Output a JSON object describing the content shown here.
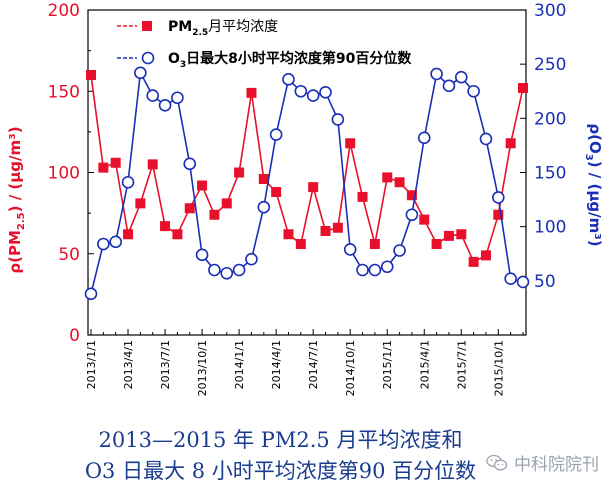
{
  "chart_data": {
    "type": "line",
    "x": [
      "2013/1/1",
      "2013/2/1",
      "2013/3/1",
      "2013/4/1",
      "2013/5/1",
      "2013/6/1",
      "2013/7/1",
      "2013/8/1",
      "2013/9/1",
      "2013/10/1",
      "2013/11/1",
      "2013/12/1",
      "2014/1/1",
      "2014/2/1",
      "2014/3/1",
      "2014/4/1",
      "2014/5/1",
      "2014/6/1",
      "2014/7/1",
      "2014/8/1",
      "2014/9/1",
      "2014/10/1",
      "2014/11/1",
      "2014/12/1",
      "2015/1/1",
      "2015/2/1",
      "2015/3/1",
      "2015/4/1",
      "2015/5/1",
      "2015/6/1",
      "2015/7/1",
      "2015/8/1",
      "2015/9/1",
      "2015/10/1",
      "2015/11/1",
      "2015/12/1"
    ],
    "x_tick_labels": [
      "2013/1/1",
      "2013/4/1",
      "2013/7/1",
      "2013/10/1",
      "2014/1/1",
      "2014/4/1",
      "2014/7/1",
      "2014/10/1",
      "2015/1/1",
      "2015/4/1",
      "2015/7/1",
      "2015/10/1"
    ],
    "ylabel_left": "ρ(PM2.5) / (μg/m3)",
    "ylabel_right": "ρ(O3) / (μg/m3)",
    "ylim_left": [
      0,
      200
    ],
    "yticks_left": [
      "0",
      "50",
      "100",
      "150",
      "200"
    ],
    "ylim_right": [
      0,
      300
    ],
    "yticks_right": [
      "50",
      "100",
      "150",
      "200",
      "250",
      "300"
    ],
    "legend_position": "top",
    "series": [
      {
        "name": "PM2.5月平均浓度",
        "axis": "left",
        "color": "#e8102a",
        "marker": "square-filled",
        "values": [
          160,
          103,
          106,
          62,
          81,
          105,
          67,
          62,
          78,
          92,
          74,
          81,
          100,
          149,
          96,
          88,
          62,
          56,
          91,
          64,
          66,
          118,
          85,
          56,
          97,
          94,
          86,
          71,
          56,
          61,
          62,
          45,
          49,
          74,
          118,
          152
        ]
      },
      {
        "name": "O3日最大8小时平均浓度第90百分位数",
        "axis": "right",
        "color": "#1a2fb5",
        "marker": "circle-open",
        "values": [
          38,
          84,
          86,
          141,
          242,
          221,
          212,
          219,
          158,
          74,
          60,
          57,
          60,
          70,
          118,
          185,
          236,
          225,
          221,
          224,
          199,
          79,
          60,
          60,
          63,
          78,
          111,
          182,
          241,
          230,
          238,
          225,
          181,
          127,
          52,
          49
        ]
      }
    ]
  },
  "legend": {
    "pm_prefix": "PM",
    "pm_sub": "2.5",
    "pm_suffix": "月平均浓度",
    "o3_prefix": "O",
    "o3_sub": "3",
    "o3_suffix": "日最大8小时平均浓度第90百分位数"
  },
  "axis_labels": {
    "left_prefix": "ρ(PM",
    "left_sub": "2.5",
    "left_suffix": ") / (μg/m³)",
    "right_prefix": "ρ(O",
    "right_sub": "3",
    "right_suffix": ") / (μg/m³)"
  },
  "caption": {
    "line1": "2013—2015 年 PM2.5 月平均浓度和",
    "line2": "O3 日最大 8 小时平均浓度第90 百分位数"
  },
  "watermark": {
    "text": "中科院院刊",
    "icon": "wechat-icon"
  },
  "colors": {
    "pm": "#e8102a",
    "o3": "#1a2fb5",
    "caption": "#1a3d8f"
  }
}
